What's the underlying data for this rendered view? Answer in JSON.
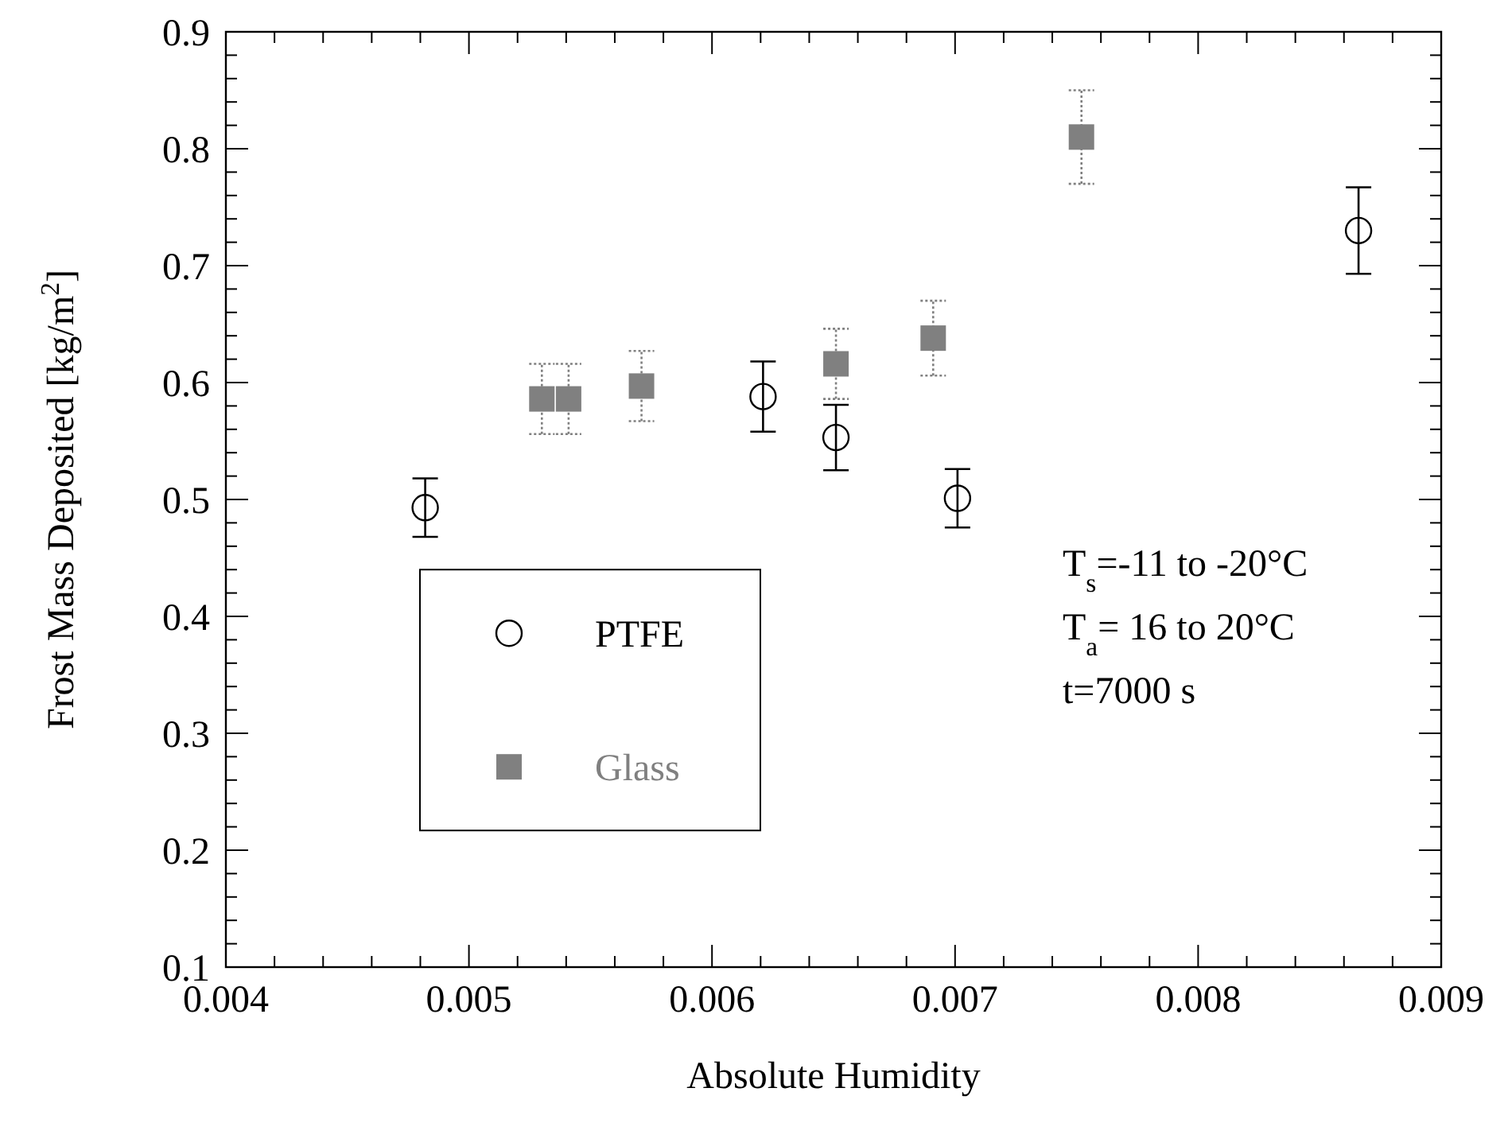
{
  "chart_data": {
    "type": "scatter",
    "xlabel": "Absolute Humidity",
    "ylabel": "Frost Mass Deposited [kg/m$^{2}$]",
    "xlim": [
      0.004,
      0.009
    ],
    "xticks": [
      0.004,
      0.005,
      0.006,
      0.007,
      0.008,
      0.009
    ],
    "ylim": [
      0.1,
      0.9
    ],
    "yticks": [
      0.1,
      0.2,
      0.3,
      0.4,
      0.5,
      0.6,
      0.7,
      0.8,
      0.9
    ],
    "grid": false,
    "legend": "bottom left",
    "series": [
      {
        "name": "PTFE",
        "color": "#000000",
        "marker": "circle",
        "x": [
          0.00482,
          0.00621,
          0.00651,
          0.00701,
          0.00866
        ],
        "values": [
          0.493,
          0.588,
          0.553,
          0.501,
          0.73
        ],
        "errors": [
          0.025,
          0.03,
          0.028,
          0.025,
          0.037
        ]
      },
      {
        "name": "Glass",
        "color": "#808080",
        "marker": "square",
        "x": [
          0.0053,
          0.00541,
          0.00571,
          0.00651,
          0.00691,
          0.00752
        ],
        "values": [
          0.586,
          0.586,
          0.597,
          0.616,
          0.638,
          0.81
        ],
        "errors": [
          0.03,
          0.03,
          0.03,
          0.03,
          0.032,
          0.04
        ]
      }
    ],
    "annotations": [
      "T$_{s}$=-11 to -20°C",
      "T$_{a}$= 16 to 20°C",
      "t=7000 s"
    ]
  }
}
